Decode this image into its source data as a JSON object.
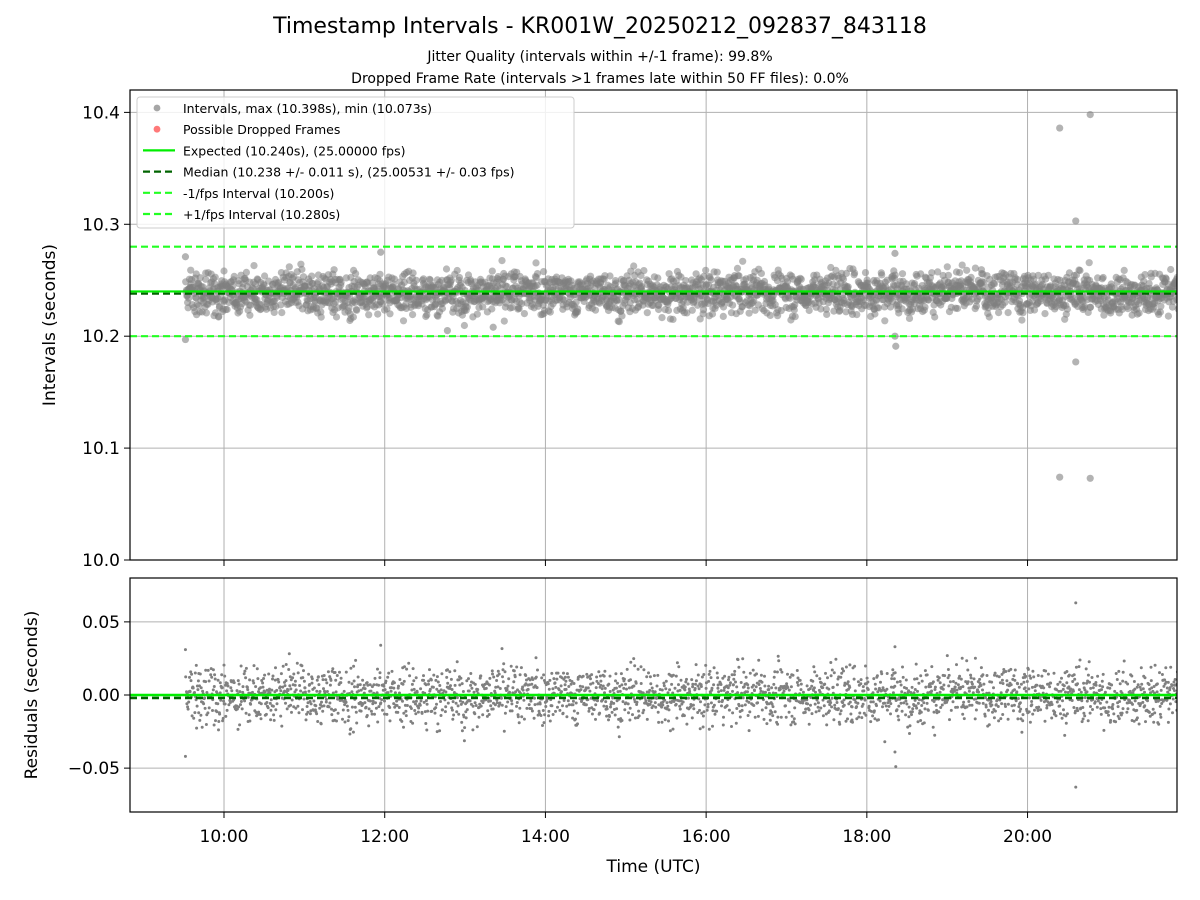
{
  "title": "Timestamp Intervals - KR001W_20250212_092837_843118",
  "subtitle1": "Jitter Quality (intervals within +/-1 frame): 99.8%",
  "subtitle2": "Dropped Frame Rate (intervals >1 frames late within 50 FF files): 0.0%",
  "colors": {
    "points": "#808080",
    "dropped": "#ff4040",
    "expected": "#00ee00",
    "median": "#006400",
    "bounds": "#22ff22",
    "grid": "#b0b0b0"
  },
  "chart_data": [
    {
      "type": "scatter",
      "ylabel": "Intervals (seconds)",
      "ylim": [
        10.0,
        10.42
      ],
      "xlim_hours": [
        8.83,
        21.86
      ],
      "yticks": [
        10.0,
        10.1,
        10.2,
        10.3,
        10.4
      ],
      "ytick_labels": [
        "10.0",
        "10.1",
        "10.2",
        "10.3",
        "10.4"
      ],
      "grid": true,
      "legend_placement": "upper-left",
      "series": [
        {
          "name": "Intervals, max (10.398s), min (10.073s)",
          "marker": "circle",
          "color": "#808080",
          "summary": {
            "max": 10.398,
            "min": 10.073,
            "typical_range": [
              10.205,
              10.265
            ],
            "start_time": "09:31",
            "end_time": "21:52"
          },
          "outliers": [
            [
              9.52,
              10.271
            ],
            [
              9.52,
              10.197
            ],
            [
              11.95,
              10.275
            ],
            [
              12.78,
              10.205
            ],
            [
              13.35,
              10.208
            ],
            [
              18.35,
              10.2
            ],
            [
              18.36,
              10.191
            ],
            [
              18.35,
              10.274
            ],
            [
              20.4,
              10.386
            ],
            [
              20.78,
              10.398
            ],
            [
              20.6,
              10.303
            ],
            [
              20.6,
              10.177
            ],
            [
              20.4,
              10.074
            ],
            [
              20.78,
              10.073
            ]
          ]
        },
        {
          "name": "Possible Dropped Frames",
          "marker": "circle",
          "color": "#ff4040",
          "values": []
        },
        {
          "name": "Expected (10.240s), (25.00000 fps)",
          "style": "solid",
          "color": "#00ee00",
          "y": 10.24
        },
        {
          "name": "Median (10.238 +/- 0.011 s), (25.00531 +/- 0.03 fps)",
          "style": "dashed",
          "color": "#006400",
          "y": 10.238
        },
        {
          "name": "-1/fps Interval (10.200s)",
          "style": "dashed",
          "color": "#22ff22",
          "y": 10.2
        },
        {
          "name": "+1/fps Interval (10.280s)",
          "style": "dashed",
          "color": "#22ff22",
          "y": 10.28
        }
      ]
    },
    {
      "type": "scatter",
      "xlabel": "Time (UTC)",
      "ylabel": "Residuals (seconds)",
      "ylim": [
        -0.08,
        0.08
      ],
      "xlim_hours": [
        8.83,
        21.86
      ],
      "yticks": [
        -0.05,
        0.0,
        0.05
      ],
      "ytick_labels": [
        "−0.05",
        "0.00",
        "0.05"
      ],
      "xticks_hours": [
        10,
        12,
        14,
        16,
        18,
        20
      ],
      "xtick_labels": [
        "10:00",
        "12:00",
        "14:00",
        "16:00",
        "18:00",
        "20:00"
      ],
      "grid": true,
      "series": [
        {
          "marker": "dot",
          "color": "#808080",
          "summary": {
            "typical_range": [
              -0.035,
              0.03
            ],
            "max": 0.063,
            "min": -0.063
          },
          "outliers": [
            [
              9.52,
              0.031
            ],
            [
              9.52,
              -0.042
            ],
            [
              11.95,
              0.034
            ],
            [
              18.35,
              0.033
            ],
            [
              18.35,
              -0.039
            ],
            [
              18.36,
              -0.049
            ],
            [
              20.6,
              0.063
            ],
            [
              20.6,
              -0.063
            ]
          ]
        },
        {
          "style": "solid",
          "color": "#00ee00",
          "y": 0.0
        },
        {
          "style": "dashed",
          "color": "#006400",
          "y": -0.002
        }
      ]
    }
  ]
}
